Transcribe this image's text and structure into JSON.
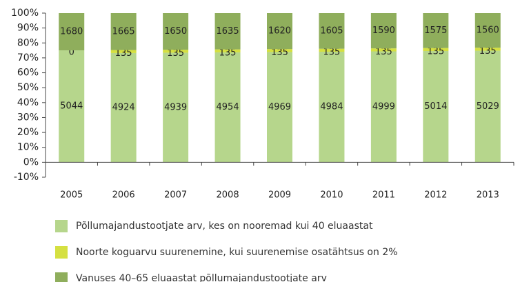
{
  "chart_data": {
    "type": "bar",
    "stacked": "percent",
    "categories": [
      "2005",
      "2006",
      "2007",
      "2008",
      "2009",
      "2010",
      "2011",
      "2012",
      "2013"
    ],
    "series": [
      {
        "name": "Põllumajandustootjate arv, kes on nooremad kui 40 eluaastat",
        "color": "#b6d68c",
        "values": [
          5044,
          4924,
          4939,
          4954,
          4969,
          4984,
          4999,
          5014,
          5029
        ]
      },
      {
        "name": "Noorte koguarvu suurenemine, kui suurenemise osatähtsus on 2%",
        "color": "#d5e041",
        "values": [
          0,
          135,
          135,
          135,
          135,
          135,
          135,
          135,
          135
        ]
      },
      {
        "name": "Vanuses 40–65 eluaastat põllumajandustootjate arv",
        "color": "#8fae5c",
        "values": [
          1680,
          1665,
          1650,
          1635,
          1620,
          1605,
          1590,
          1575,
          1560
        ]
      }
    ],
    "ylim": [
      -10,
      100
    ],
    "yticks": [
      {
        "value": -10,
        "label": "-10%"
      },
      {
        "value": 0,
        "label": "0%"
      },
      {
        "value": 10,
        "label": "10%"
      },
      {
        "value": 20,
        "label": "20%"
      },
      {
        "value": 30,
        "label": "30%"
      },
      {
        "value": 40,
        "label": "40%"
      },
      {
        "value": 50,
        "label": "50%"
      },
      {
        "value": 60,
        "label": "60%"
      },
      {
        "value": 70,
        "label": "70%"
      },
      {
        "value": 80,
        "label": "80%"
      },
      {
        "value": 90,
        "label": "90%"
      },
      {
        "value": 100,
        "label": "100%"
      }
    ],
    "legend": "bottom"
  }
}
